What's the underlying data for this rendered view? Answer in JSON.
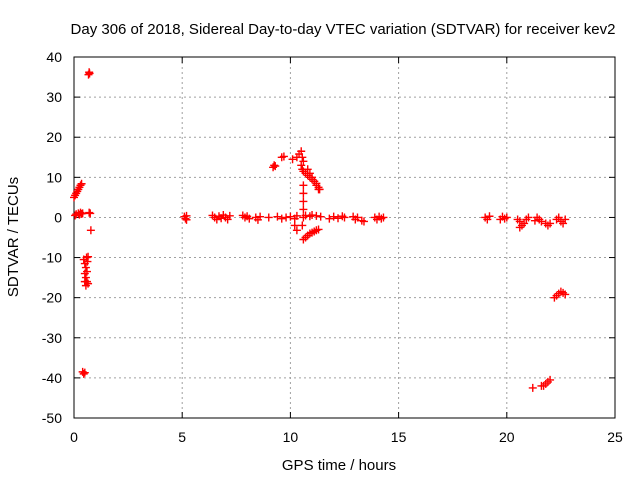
{
  "chart_data": {
    "type": "scatter",
    "title": "Day 306 of 2018, Sidereal Day-to-day VTEC variation (SDTVAR) for receiver kev2",
    "xlabel": "GPS time / hours",
    "ylabel": "SDTVAR / TECUs",
    "xlim": [
      0,
      25
    ],
    "ylim": [
      -50,
      40
    ],
    "xticks": [
      0,
      5,
      10,
      15,
      20,
      25
    ],
    "yticks": [
      40,
      30,
      20,
      10,
      0,
      -10,
      -20,
      -30,
      -40,
      -50
    ],
    "xtick_labels": [
      "0",
      "5",
      "10",
      "15",
      "20",
      "25"
    ],
    "ytick_labels": [
      "40",
      "30",
      "20",
      "10",
      "0",
      "-10",
      "-20",
      "-30",
      "-40",
      "-50"
    ],
    "grid": true,
    "marker": "plus",
    "series": [
      {
        "name": "SDTVAR",
        "color": "#ff0000",
        "points": [
          [
            0.67,
            35.6
          ],
          [
            0.7,
            36.2
          ],
          [
            0.72,
            35.9
          ],
          [
            0.0,
            5.0
          ],
          [
            0.05,
            5.5
          ],
          [
            0.1,
            6.0
          ],
          [
            0.15,
            6.5
          ],
          [
            0.2,
            7.0
          ],
          [
            0.25,
            7.5
          ],
          [
            0.3,
            8.0
          ],
          [
            0.35,
            8.4
          ],
          [
            0.05,
            0.5
          ],
          [
            0.1,
            0.8
          ],
          [
            0.2,
            1.0
          ],
          [
            0.25,
            0.7
          ],
          [
            0.3,
            1.2
          ],
          [
            0.35,
            0.9
          ],
          [
            0.4,
            1.0
          ],
          [
            0.7,
            1.2
          ],
          [
            0.75,
            1.0
          ],
          [
            0.78,
            -3.2
          ],
          [
            0.45,
            -10.5
          ],
          [
            0.5,
            -11.5
          ],
          [
            0.55,
            -12.5
          ],
          [
            0.6,
            -13.5
          ],
          [
            0.62,
            -11.0
          ],
          [
            0.58,
            -10.0
          ],
          [
            0.65,
            -9.8
          ],
          [
            0.5,
            -14.0
          ],
          [
            0.55,
            -15.0
          ],
          [
            0.6,
            -16.0
          ],
          [
            0.65,
            -16.5
          ],
          [
            0.5,
            -16.0
          ],
          [
            0.55,
            -17.0
          ],
          [
            0.4,
            -38.5
          ],
          [
            0.45,
            -39.0
          ],
          [
            0.5,
            -38.7
          ],
          [
            5.1,
            0.2
          ],
          [
            5.15,
            -0.3
          ],
          [
            5.2,
            0.4
          ],
          [
            5.2,
            -0.6
          ],
          [
            6.4,
            0.5
          ],
          [
            6.5,
            0.0
          ],
          [
            6.6,
            -0.5
          ],
          [
            6.7,
            0.3
          ],
          [
            6.8,
            -0.2
          ],
          [
            6.9,
            0.6
          ],
          [
            7.0,
            0.0
          ],
          [
            7.1,
            -0.5
          ],
          [
            7.2,
            0.4
          ],
          [
            7.8,
            0.5
          ],
          [
            7.9,
            0.0
          ],
          [
            8.0,
            0.3
          ],
          [
            8.1,
            -0.3
          ],
          [
            8.4,
            0.0
          ],
          [
            8.5,
            -0.6
          ],
          [
            8.6,
            0.2
          ],
          [
            9.0,
            0.0
          ],
          [
            9.2,
            12.5
          ],
          [
            9.25,
            13.0
          ],
          [
            9.3,
            12.8
          ],
          [
            9.6,
            15.0
          ],
          [
            9.7,
            15.2
          ],
          [
            9.4,
            0.2
          ],
          [
            9.6,
            -0.3
          ],
          [
            9.8,
            0.0
          ],
          [
            10.0,
            0.2
          ],
          [
            10.2,
            -0.3
          ],
          [
            10.3,
            0.4
          ],
          [
            10.2,
            -2.0
          ],
          [
            10.3,
            -3.2
          ],
          [
            10.1,
            14.5
          ],
          [
            10.3,
            15.0
          ],
          [
            10.4,
            15.8
          ],
          [
            10.5,
            16.5
          ],
          [
            10.55,
            15.0
          ],
          [
            10.6,
            14.0
          ],
          [
            10.5,
            13.0
          ],
          [
            10.55,
            12.0
          ],
          [
            10.6,
            11.5
          ],
          [
            10.7,
            11.0
          ],
          [
            10.8,
            10.5
          ],
          [
            10.9,
            10.0
          ],
          [
            11.0,
            9.5
          ],
          [
            11.1,
            9.0
          ],
          [
            11.2,
            8.5
          ],
          [
            11.3,
            7.5
          ],
          [
            11.35,
            7.0
          ],
          [
            10.8,
            12.0
          ],
          [
            10.9,
            11.0
          ],
          [
            11.0,
            10.0
          ],
          [
            11.1,
            9.0
          ],
          [
            11.2,
            8.0
          ],
          [
            11.3,
            7.0
          ],
          [
            10.6,
            8.0
          ],
          [
            10.6,
            6.0
          ],
          [
            10.6,
            4.0
          ],
          [
            10.6,
            2.0
          ],
          [
            10.6,
            0.0
          ],
          [
            10.55,
            -2.0
          ],
          [
            10.6,
            -5.5
          ],
          [
            10.7,
            -5.0
          ],
          [
            10.8,
            -4.5
          ],
          [
            10.9,
            -4.0
          ],
          [
            11.0,
            -3.8
          ],
          [
            11.1,
            -3.5
          ],
          [
            11.2,
            -3.2
          ],
          [
            11.3,
            -3.0
          ],
          [
            10.7,
            0.5
          ],
          [
            10.9,
            0.3
          ],
          [
            11.0,
            0.6
          ],
          [
            11.2,
            0.4
          ],
          [
            11.4,
            0.2
          ],
          [
            11.8,
            -0.3
          ],
          [
            12.0,
            0.2
          ],
          [
            12.2,
            -0.2
          ],
          [
            12.4,
            0.3
          ],
          [
            12.5,
            0.0
          ],
          [
            12.9,
            0.2
          ],
          [
            13.0,
            -0.5
          ],
          [
            13.1,
            0.0
          ],
          [
            13.3,
            -0.8
          ],
          [
            13.4,
            -1.0
          ],
          [
            13.9,
            0.0
          ],
          [
            14.0,
            -0.5
          ],
          [
            14.1,
            0.2
          ],
          [
            14.2,
            -0.3
          ],
          [
            14.3,
            0.0
          ],
          [
            19.0,
            0.0
          ],
          [
            19.1,
            -0.5
          ],
          [
            19.2,
            0.3
          ],
          [
            19.7,
            -0.5
          ],
          [
            19.8,
            0.2
          ],
          [
            19.9,
            -0.3
          ],
          [
            20.0,
            0.0
          ],
          [
            20.5,
            -0.5
          ],
          [
            20.6,
            -1.0
          ],
          [
            20.7,
            -2.0
          ],
          [
            20.8,
            -1.5
          ],
          [
            20.9,
            -0.5
          ],
          [
            21.0,
            0.0
          ],
          [
            20.6,
            -2.5
          ],
          [
            21.3,
            -0.8
          ],
          [
            21.4,
            0.0
          ],
          [
            21.5,
            -0.5
          ],
          [
            21.6,
            -1.0
          ],
          [
            21.8,
            -1.5
          ],
          [
            21.9,
            -2.0
          ],
          [
            22.0,
            -1.5
          ],
          [
            22.3,
            -0.5
          ],
          [
            22.4,
            0.0
          ],
          [
            22.5,
            -1.0
          ],
          [
            22.6,
            -1.5
          ],
          [
            22.7,
            -0.5
          ],
          [
            22.2,
            -20.0
          ],
          [
            22.3,
            -19.5
          ],
          [
            22.4,
            -19.0
          ],
          [
            22.5,
            -18.5
          ],
          [
            22.6,
            -18.8
          ],
          [
            22.7,
            -19.2
          ],
          [
            21.2,
            -42.5
          ],
          [
            21.6,
            -42.0
          ],
          [
            21.7,
            -42.0
          ],
          [
            21.8,
            -41.5
          ],
          [
            21.9,
            -41.0
          ],
          [
            22.0,
            -40.5
          ]
        ]
      }
    ]
  }
}
